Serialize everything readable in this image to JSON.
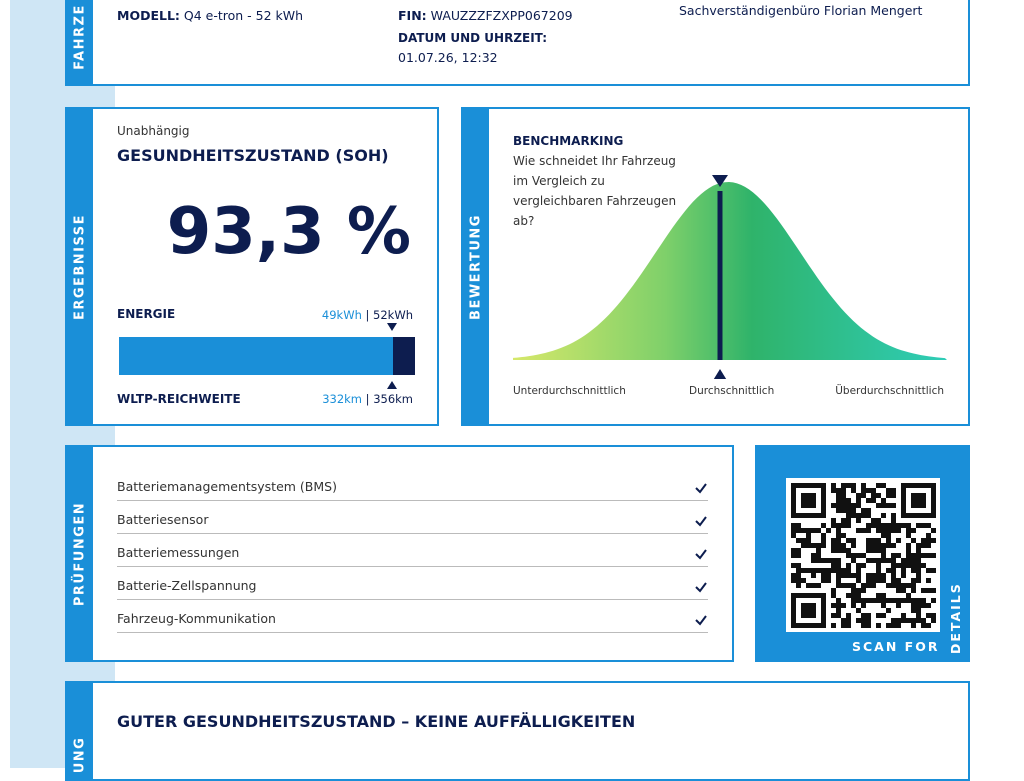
{
  "vehicle": {
    "side_label": "FAHRZE",
    "model_label": "MODELL:",
    "model": "Q4 e-tron - 52 kWh",
    "fin_label": "FIN:",
    "fin": "WAUZZZFZXPP067209",
    "datetime_label": "DATUM UND UHRZEIT:",
    "datetime": "01.07.26, 12:32",
    "issuer": "Sachverständigenbüro Florian Mengert"
  },
  "results": {
    "side_label": "ERGEBNISSE",
    "kicker": "Unabhängig",
    "title": "GESUNDHEITSZUSTAND (SOH)",
    "soh": "93,3 %",
    "energy_label": "ENERGIE",
    "energy_current": "49kWh",
    "separator": "|",
    "energy_nominal": "52kWh",
    "range_label": "WLTP-REICHWEITE",
    "range_current": "332km",
    "range_nominal": "356km"
  },
  "rating": {
    "side_label": "BEWERTUNG",
    "title": "BENCHMARKING",
    "question": "Wie schneidet Ihr Fahrzeug im Vergleich zu vergleichbaren Fahrzeugen ab?",
    "scale": [
      "Unterdurchschnittlich",
      "Durchschnittlich",
      "Überdurchschnittlich"
    ]
  },
  "checks": {
    "side_label": "PRÜFUNGEN",
    "items": [
      "Batteriemanagementsystem (BMS)",
      "Batteriesensor",
      "Batteriemessungen",
      "Batterie-Zellspannung",
      "Fahrzeug-Kommunikation"
    ]
  },
  "qr": {
    "caption": "SCAN FOR",
    "caption_vertical": "DETAILS"
  },
  "summary": {
    "side_label": "UNG",
    "title": "GUTER GESUNDHEITSZUSTAND – KEINE AUFFÄLLIGKEITEN"
  }
}
